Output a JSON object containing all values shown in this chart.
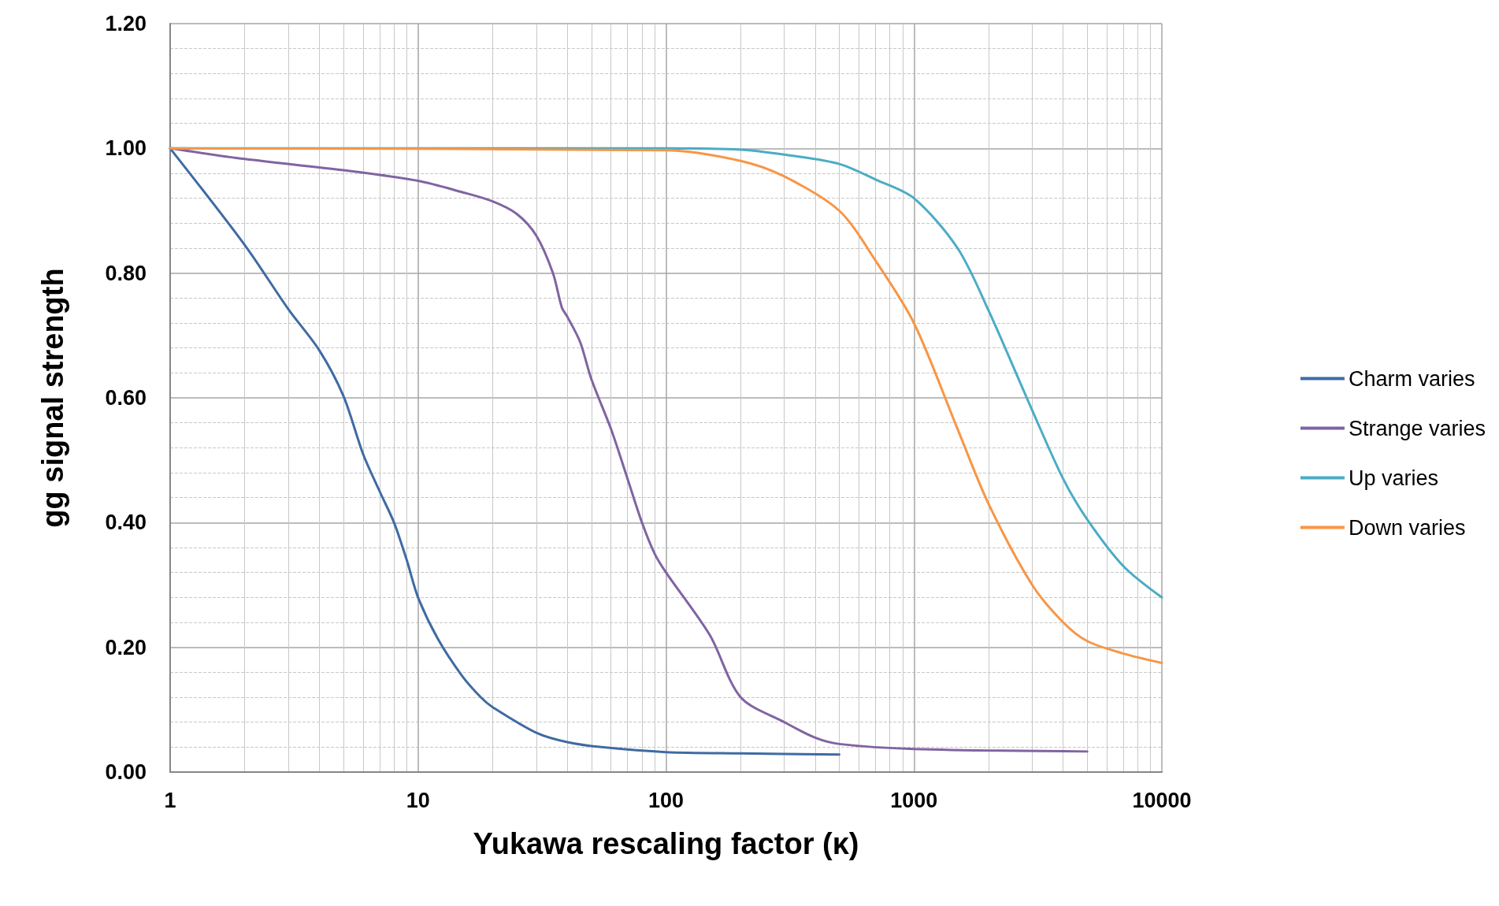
{
  "chart_data": {
    "type": "line",
    "xlabel": "Yukawa rescaling factor (κ)",
    "ylabel": "gg signal strength",
    "log": "x",
    "xlim": [
      1,
      10000
    ],
    "xticks": [
      1,
      10,
      100,
      1000,
      10000
    ],
    "ylim": [
      0,
      1.2
    ],
    "yticks": [
      {
        "value": 0,
        "label": "0.00"
      },
      {
        "value": 0.2,
        "label": "0.20"
      },
      {
        "value": 0.4,
        "label": "0.40"
      },
      {
        "value": 0.6,
        "label": "0.60"
      },
      {
        "value": 0.8,
        "label": "0.80"
      },
      {
        "value": 1,
        "label": "1.00"
      },
      {
        "value": 1.2,
        "label": "1.20"
      }
    ],
    "grid": true,
    "legend": "right",
    "marker": "none",
    "line_style": "solid",
    "series": [
      {
        "name": "Charm varies",
        "color": "#3f6ba3",
        "x": [
          1,
          2,
          3,
          4,
          5,
          6,
          7,
          8,
          9,
          10,
          12,
          15,
          18,
          20,
          30,
          40,
          55,
          100,
          200,
          500
        ],
        "values": [
          1,
          0.845,
          0.742,
          0.676,
          0.603,
          0.51,
          0.45,
          0.4,
          0.34,
          0.28,
          0.214,
          0.155,
          0.119,
          0.104,
          0.063,
          0.048,
          0.04,
          0.032,
          0.03,
          0.028
        ]
      },
      {
        "name": "Strange varies",
        "color": "#8064a2",
        "x": [
          1,
          2,
          5,
          10,
          15,
          20,
          25,
          30,
          35,
          38,
          40,
          45,
          50,
          60,
          70,
          80,
          90,
          100,
          150,
          200,
          300,
          400,
          500,
          1000,
          5000
        ],
        "values": [
          1,
          0.983,
          0.965,
          0.948,
          0.93,
          0.915,
          0.895,
          0.86,
          0.8,
          0.745,
          0.73,
          0.69,
          0.63,
          0.55,
          0.47,
          0.4,
          0.35,
          0.32,
          0.22,
          0.12,
          0.08,
          0.055,
          0.045,
          0.037,
          0.033
        ]
      },
      {
        "name": "Up varies",
        "color": "#4bacc6",
        "x": [
          1,
          100,
          200,
          300,
          500,
          700,
          1000,
          1500,
          2000,
          3000,
          4000,
          5000,
          7000,
          10000
        ],
        "values": [
          1,
          1,
          0.998,
          0.99,
          0.975,
          0.95,
          0.92,
          0.84,
          0.74,
          0.58,
          0.47,
          0.405,
          0.33,
          0.28
        ]
      },
      {
        "name": "Down varies",
        "color": "#f79646",
        "x": [
          1,
          100,
          200,
          300,
          500,
          700,
          1000,
          1500,
          2000,
          3000,
          4000,
          5000,
          7000,
          10000
        ],
        "values": [
          1,
          0.997,
          0.98,
          0.955,
          0.9,
          0.82,
          0.72,
          0.55,
          0.43,
          0.3,
          0.24,
          0.21,
          0.19,
          0.175
        ]
      }
    ]
  }
}
